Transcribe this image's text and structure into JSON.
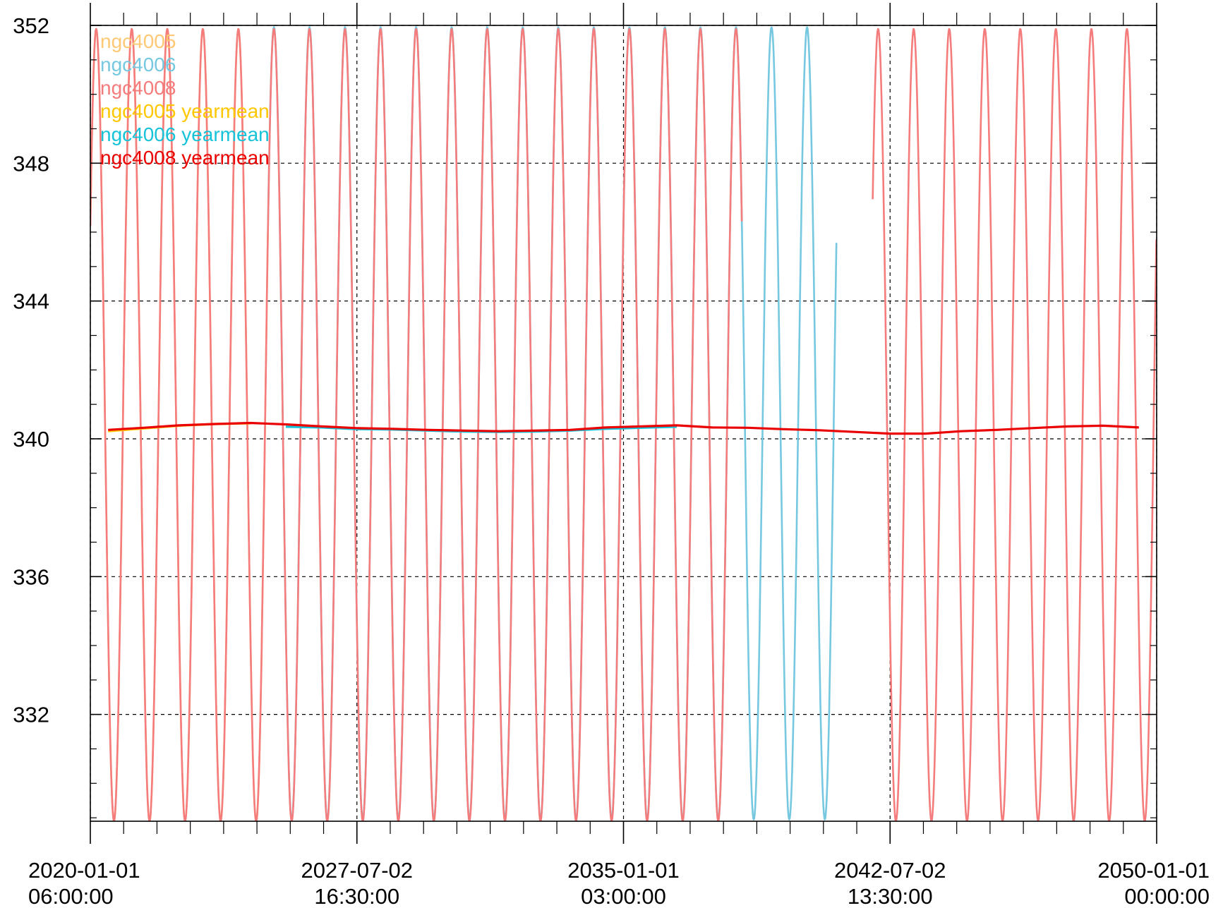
{
  "chart_data": {
    "type": "line",
    "title": "",
    "xlabel": "",
    "ylabel": "",
    "xlim": [
      "2020-01-01 06:00:00",
      "2050-01-01 00:00:00"
    ],
    "ylim": [
      328.9,
      352.0
    ],
    "yticks": [
      332,
      336,
      340,
      344,
      348,
      352
    ],
    "yticks_minor": [
      329,
      330,
      331,
      333,
      334,
      335,
      337,
      338,
      339,
      341,
      342,
      343,
      345,
      346,
      347,
      349,
      350,
      351
    ],
    "xticks": [
      {
        "date": "2020-01-01",
        "time": "06:00:00"
      },
      {
        "date": "2027-07-02",
        "time": "16:30:00"
      },
      {
        "date": "2035-01-01",
        "time": "03:00:00"
      },
      {
        "date": "2042-07-02",
        "time": "13:30:00"
      },
      {
        "date": "2050-01-01",
        "time": "00:00:00"
      }
    ],
    "grid": true,
    "legend_position": "top-left",
    "series": [
      {
        "name": "ngc4005",
        "color": "#ffc875",
        "kind": "seasonal",
        "start": "2020-01-01",
        "end": "2025-01-01",
        "mean": 340.4,
        "amplitude": 11.5,
        "peak_month": 2.0,
        "trough_month": 8.0
      },
      {
        "name": "ngc4006",
        "color": "#76c8e1",
        "kind": "seasonal",
        "start": "2025-01-01",
        "end": "2041-01-01",
        "mean": 340.45,
        "amplitude": 11.5,
        "peak_month": 2.0,
        "trough_month": 8.0
      },
      {
        "name": "ngc4008",
        "color": "#f47c7c",
        "kind": "seasonal",
        "start": "2020-01-01",
        "end": "2050-01-01",
        "mean": 340.4,
        "amplitude": 11.5,
        "peak_month": 2.0,
        "trough_month": 8.0,
        "gaps": [
          [
            "2038-05-01",
            "2042-01-01"
          ]
        ]
      },
      {
        "name": "ngc4005 yearmean",
        "color": "#ffc700",
        "kind": "yearly",
        "x": [
          "2020-07-02",
          "2021-07-02",
          "2022-07-02",
          "2023-07-02",
          "2024-07-02"
        ],
        "y": [
          340.22,
          340.3,
          340.38,
          340.43,
          340.45
        ]
      },
      {
        "name": "ngc4006 yearmean",
        "color": "#16c3d9",
        "kind": "yearly",
        "x": [
          "2025-07-02",
          "2026-07-02",
          "2027-07-02",
          "2028-07-02",
          "2029-07-02",
          "2030-07-02",
          "2031-07-02",
          "2032-07-02",
          "2033-07-02",
          "2034-07-02",
          "2035-07-02",
          "2036-07-02"
        ],
        "y": [
          340.35,
          340.33,
          340.28,
          340.27,
          340.24,
          340.21,
          340.2,
          340.21,
          340.24,
          340.29,
          340.32,
          340.35
        ]
      },
      {
        "name": "ngc4008 yearmean",
        "color": "#ea0000",
        "kind": "yearly",
        "x": [
          "2020-07-02",
          "2021-07-02",
          "2022-07-02",
          "2023-07-02",
          "2024-07-02",
          "2025-07-02",
          "2026-07-02",
          "2027-07-02",
          "2028-07-02",
          "2029-07-02",
          "2030-07-02",
          "2031-07-02",
          "2032-07-02",
          "2033-07-02",
          "2034-07-02",
          "2035-07-02",
          "2036-07-02",
          "2037-07-02",
          "2038-07-02",
          "2039-07-02",
          "2040-07-02",
          "2041-07-02",
          "2042-07-02",
          "2043-07-02",
          "2044-07-02",
          "2045-07-02",
          "2046-07-02",
          "2047-07-02",
          "2048-07-02",
          "2049-07-02"
        ],
        "y": [
          340.26,
          340.32,
          340.39,
          340.43,
          340.46,
          340.42,
          340.36,
          340.31,
          340.29,
          340.26,
          340.24,
          340.22,
          340.24,
          340.26,
          340.33,
          340.36,
          340.39,
          340.33,
          340.32,
          340.28,
          340.25,
          340.2,
          340.15,
          340.15,
          340.22,
          340.26,
          340.31,
          340.36,
          340.38,
          340.33
        ]
      }
    ]
  }
}
